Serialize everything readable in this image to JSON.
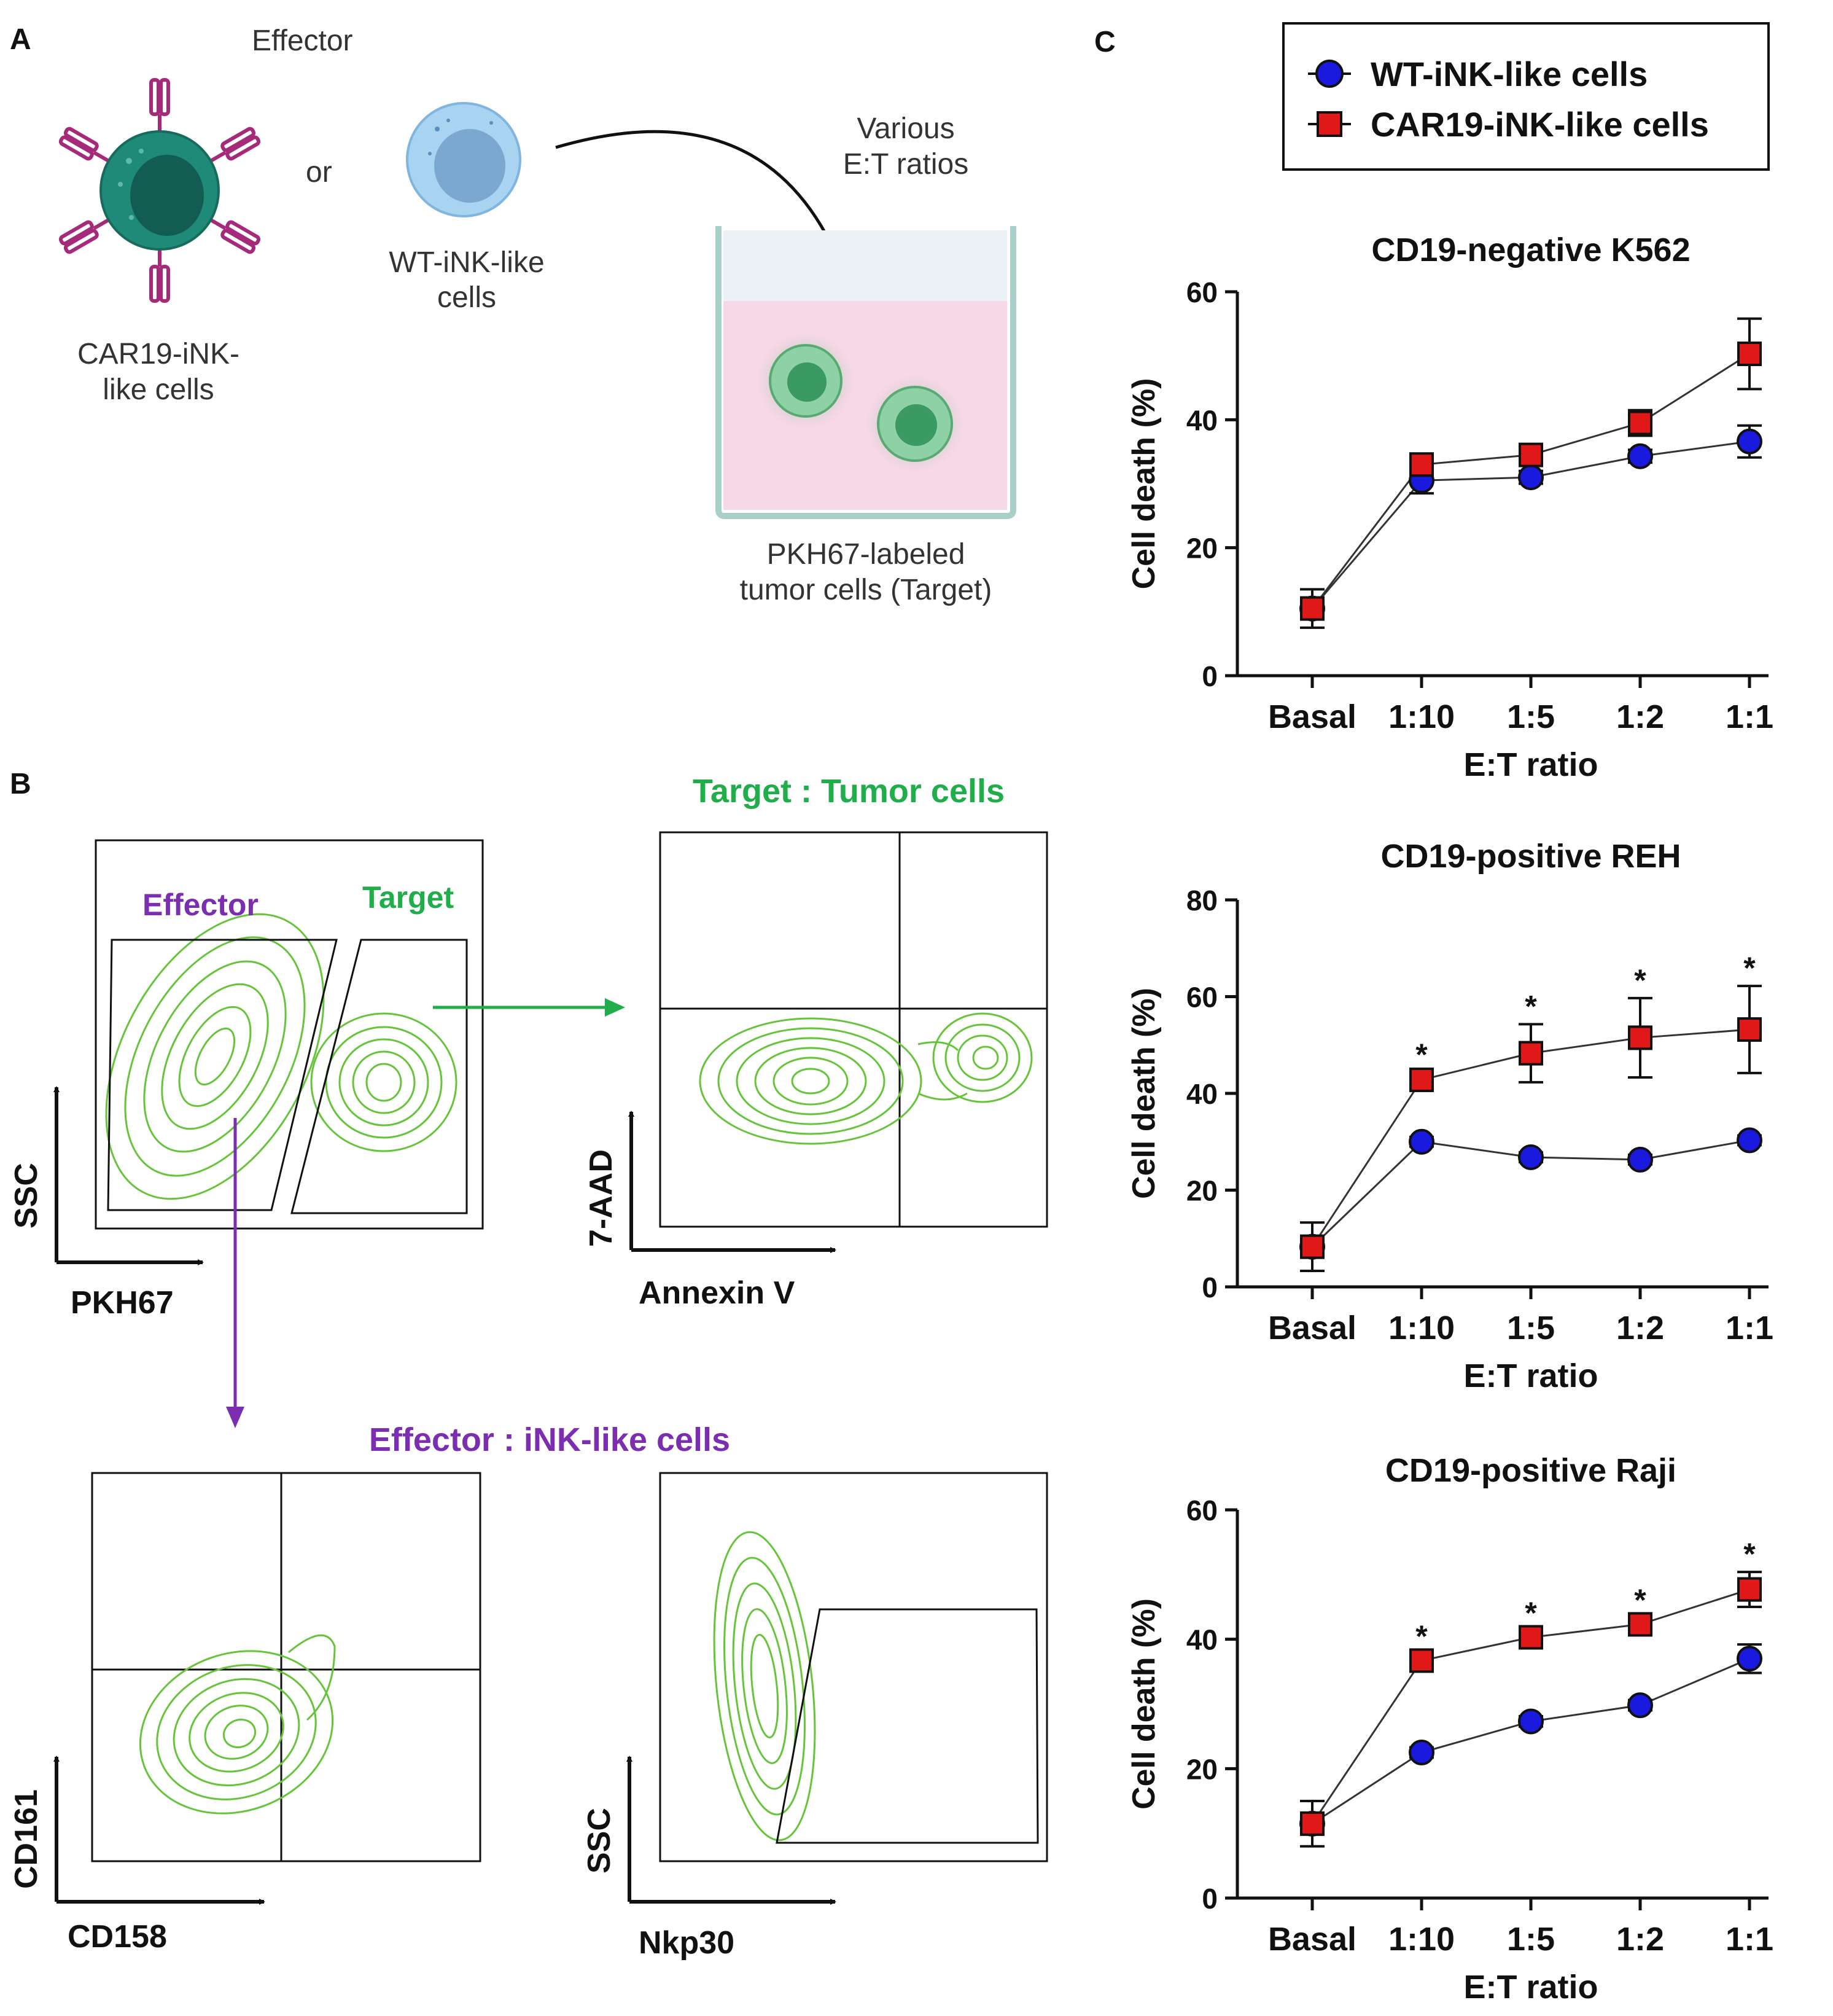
{
  "colors": {
    "wt": "#1a1adf",
    "car": "#e01818",
    "effector": "#7b2fb0",
    "target": "#1fae4a",
    "contour": "#66c43a",
    "cell_dark": "#1e6e66",
    "cell_light": "#8ec5ec",
    "receptor": "#a52a7a"
  },
  "panel_a": {
    "label": "A",
    "effector_title": "Effector",
    "or_text": "or",
    "car_cell_label_1": "CAR19-iNK-",
    "car_cell_label_2": "like cells",
    "wt_cell_label_1": "WT-iNK-like",
    "wt_cell_label_2": "cells",
    "ratio_label_1": "Various",
    "ratio_label_2": "E:T ratios",
    "target_label_1": "PKH67-labeled",
    "target_label_2": "tumor cells (Target)"
  },
  "panel_b": {
    "label": "B",
    "gate_effector": "Effector",
    "gate_target": "Target",
    "target_heading": "Target : Tumor cells",
    "effector_heading": "Effector : iNK-like cells",
    "plot1": {
      "x_axis": "PKH67",
      "y_axis": "SSC"
    },
    "plot2": {
      "x_axis": "Annexin V",
      "y_axis": "7-AAD"
    },
    "plot3": {
      "x_axis": "CD158",
      "y_axis": "CD161"
    },
    "plot4": {
      "x_axis": "Nkp30",
      "y_axis": "SSC"
    }
  },
  "panel_c": {
    "label": "C",
    "legend": [
      "WT-iNK-like cells",
      "CAR19-iNK-like cells"
    ]
  },
  "chart_data": [
    {
      "type": "line",
      "title": "CD19-negative K562",
      "xlabel": "E:T ratio",
      "ylabel": "Cell death (%)",
      "categories": [
        "Basal",
        "1:10",
        "1:5",
        "1:2",
        "1:1"
      ],
      "ylim": [
        0,
        60
      ],
      "yticks": [
        0,
        20,
        40,
        60
      ],
      "series": [
        {
          "name": "WT-iNK-like cells",
          "values": [
            10.5,
            30.5,
            31,
            34.3,
            36.6
          ],
          "errors": [
            1.5,
            2,
            1,
            1,
            2.5
          ]
        },
        {
          "name": "CAR19-iNK-like cells",
          "values": [
            10.5,
            33,
            34.5,
            39.5,
            50.3
          ],
          "errors": [
            3,
            1,
            1.2,
            2,
            5.5
          ]
        }
      ],
      "significance": [
        "",
        "",
        "",
        "",
        ""
      ]
    },
    {
      "type": "line",
      "title": "CD19-positive REH",
      "xlabel": "E:T ratio",
      "ylabel": "Cell death (%)",
      "categories": [
        "Basal",
        "1:10",
        "1:5",
        "1:2",
        "1:1"
      ],
      "ylim": [
        0,
        80
      ],
      "yticks": [
        0,
        20,
        40,
        60,
        80
      ],
      "series": [
        {
          "name": "WT-iNK-like cells",
          "values": [
            8.3,
            30,
            26.8,
            26.3,
            30.3
          ],
          "errors": [
            1.5,
            1,
            1,
            1,
            1
          ]
        },
        {
          "name": "CAR19-iNK-like cells",
          "values": [
            8.3,
            42.8,
            48.3,
            51.5,
            53.2
          ],
          "errors": [
            5,
            1.5,
            6,
            8.2,
            9
          ]
        }
      ],
      "significance": [
        "",
        "*",
        "*",
        "*",
        "*"
      ]
    },
    {
      "type": "line",
      "title": "CD19-positive Raji",
      "xlabel": "E:T ratio",
      "ylabel": "Cell death (%)",
      "categories": [
        "Basal",
        "1:10",
        "1:5",
        "1:2",
        "1:1"
      ],
      "ylim": [
        0,
        60
      ],
      "yticks": [
        0,
        20,
        40,
        60
      ],
      "series": [
        {
          "name": "WT-iNK-like cells",
          "values": [
            11.5,
            22.5,
            27.3,
            29.8,
            37
          ],
          "errors": [
            1.5,
            0.8,
            0.8,
            0.8,
            2.2
          ]
        },
        {
          "name": "CAR19-iNK-like cells",
          "values": [
            11.5,
            36.7,
            40.3,
            42.3,
            47.7
          ],
          "errors": [
            3.5,
            1,
            1,
            1,
            2.7
          ]
        }
      ],
      "significance": [
        "",
        "*",
        "*",
        "*",
        "*"
      ]
    }
  ]
}
